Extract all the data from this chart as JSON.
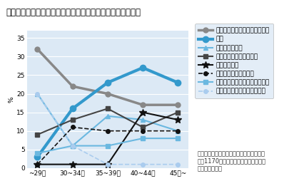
{
  "title": "理想の子供の数と実際の子供の数にギャップがある人の理由",
  "ylabel": "%",
  "categories": [
    "~29歳",
    "30~34歳",
    "35~39歳",
    "40~44歳",
    "45歳~"
  ],
  "ylim": [
    0,
    37
  ],
  "yticks": [
    0,
    5,
    10,
    15,
    20,
    25,
    30,
    35
  ],
  "bg_color": "#dce9f5",
  "series": [
    {
      "label": "キャリアロスが不安・仕事優先",
      "values": [
        32,
        22,
        20,
        17,
        17
      ],
      "color": "#888888",
      "linewidth": 2.5,
      "marker": "o",
      "markersize": 5,
      "dashed": false
    },
    {
      "label": "不妊",
      "values": [
        3,
        16,
        23,
        27,
        23
      ],
      "color": "#3399cc",
      "linewidth": 3.0,
      "marker": "o",
      "markersize": 6,
      "dashed": false
    },
    {
      "label": "経済面での不安",
      "values": [
        20,
        6,
        14,
        13,
        10
      ],
      "color": "#6bb8e0",
      "linewidth": 1.5,
      "marker": "^",
      "markersize": 5,
      "dashed": false
    },
    {
      "label": "考える／つくる暇がない",
      "values": [
        9,
        13,
        16,
        11,
        15
      ],
      "color": "#444444",
      "linewidth": 1.5,
      "marker": "s",
      "markersize": 4,
      "dashed": false
    },
    {
      "label": "体力面の不安",
      "values": [
        1,
        1,
        1,
        15,
        13
      ],
      "color": "#111111",
      "linewidth": 1.5,
      "marker": "*",
      "markersize": 7,
      "dashed": false
    },
    {
      "label": "保育所等サポート不足",
      "values": [
        1,
        11,
        10,
        10,
        10
      ],
      "color": "#111111",
      "linewidth": 1.2,
      "marker": "o",
      "markersize": 4,
      "dashed": true
    },
    {
      "label": "夫婦間でタイミングが合わない",
      "values": [
        4,
        6,
        6,
        8,
        8
      ],
      "color": "#6bb8e0",
      "linewidth": 1.5,
      "marker": "s",
      "markersize": 4,
      "dashed": false
    },
    {
      "label": "年齢的に子供はまだ先でいい",
      "values": [
        20,
        6,
        1,
        1,
        1
      ],
      "color": "#aaccee",
      "linewidth": 1.2,
      "marker": "o",
      "markersize": 4,
      "dashed": true
    }
  ],
  "note": "（「結婚していない」「その他」を除いた\n回答1170の主要な理由を各年代におけ\nる比率で表示）",
  "title_fontsize": 8.5,
  "legend_fontsize": 6.5,
  "tick_fontsize": 6.5,
  "note_fontsize": 6.0
}
